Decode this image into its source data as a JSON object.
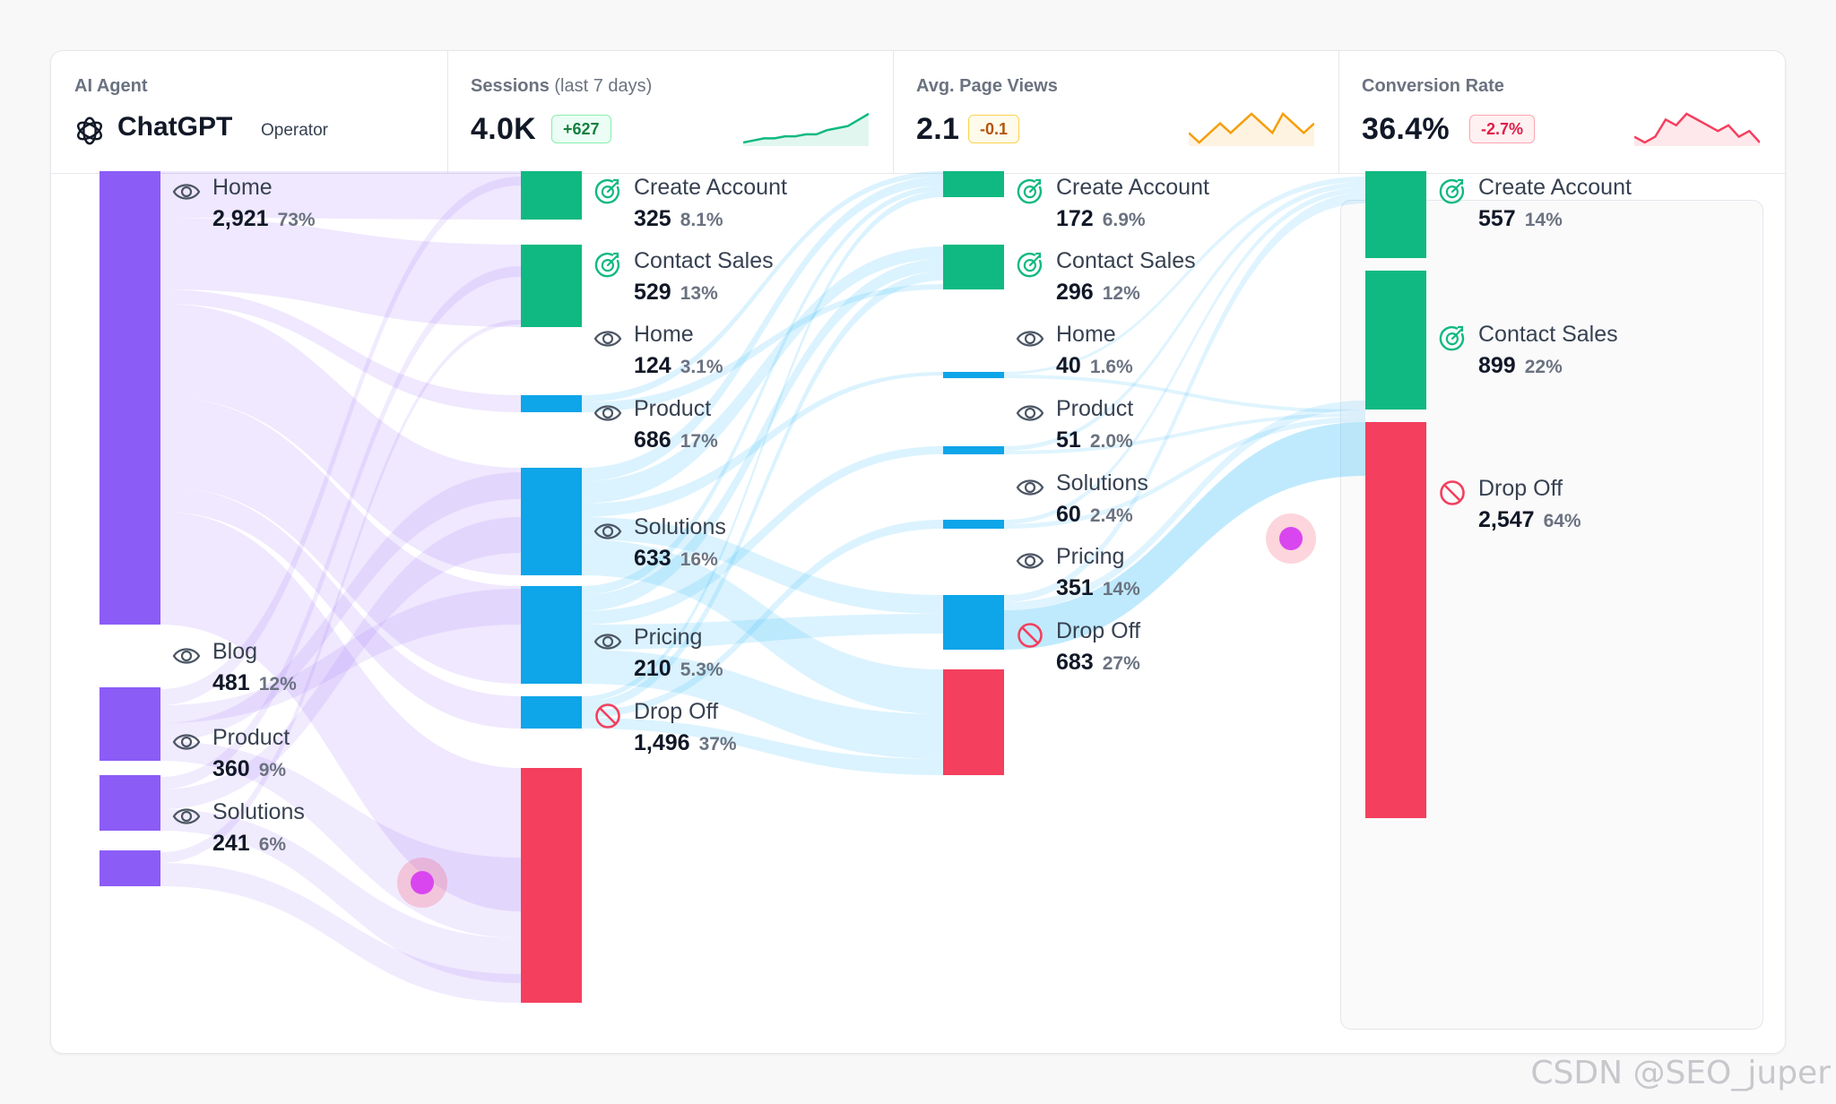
{
  "header": {
    "agent": {
      "label": "AI Agent",
      "name": "ChatGPT",
      "role": "Operator",
      "icon": "chatgpt-logo-icon"
    },
    "sessions": {
      "label": "Sessions",
      "sublabel": "(last 7 days)",
      "value": "4.0K",
      "delta": "+627",
      "trend": "up",
      "color": "#10b981",
      "spark": [
        2,
        3,
        4,
        4,
        5,
        5,
        6,
        6,
        8,
        9,
        10,
        13,
        16
      ]
    },
    "page_views": {
      "label": "Avg. Page Views",
      "value": "2.1",
      "delta": "-0.1",
      "trend": "flat",
      "color": "#f59e0b",
      "spark": [
        5,
        4,
        5,
        6,
        5,
        6,
        7,
        6,
        5,
        7,
        6,
        5,
        6
      ]
    },
    "conversion": {
      "label": "Conversion Rate",
      "value": "36.4%",
      "delta": "-2.7%",
      "trend": "down",
      "color": "#f43f5e",
      "spark": [
        5,
        4,
        5,
        8,
        7,
        9,
        8,
        7,
        6,
        7,
        5,
        6,
        4
      ]
    }
  },
  "colors": {
    "page": "#8b5cf6",
    "goal": "#10b981",
    "visit": "#0ea5e9",
    "drop": "#f43f5e",
    "link_stage1": "#8b5cf6",
    "link_stage2": "#38bdf8",
    "highlight": "#d946ef"
  },
  "sankey": {
    "columns": [
      {
        "stage": 1,
        "nodes": [
          {
            "id": "s1-home",
            "name": "Home",
            "count": "2,921",
            "pct": "73%",
            "type": "page",
            "icon": "eye-icon"
          },
          {
            "id": "s1-blog",
            "name": "Blog",
            "count": "481",
            "pct": "12%",
            "type": "page",
            "icon": "eye-icon"
          },
          {
            "id": "s1-product",
            "name": "Product",
            "count": "360",
            "pct": "9%",
            "type": "page",
            "icon": "eye-icon"
          },
          {
            "id": "s1-solutions",
            "name": "Solutions",
            "count": "241",
            "pct": "6%",
            "type": "page",
            "icon": "eye-icon"
          }
        ]
      },
      {
        "stage": 2,
        "nodes": [
          {
            "id": "s2-create",
            "name": "Create Account",
            "count": "325",
            "pct": "8.1%",
            "type": "goal",
            "icon": "target-check-icon"
          },
          {
            "id": "s2-contact",
            "name": "Contact Sales",
            "count": "529",
            "pct": "13%",
            "type": "goal",
            "icon": "target-check-icon"
          },
          {
            "id": "s2-home",
            "name": "Home",
            "count": "124",
            "pct": "3.1%",
            "type": "visit",
            "icon": "eye-icon"
          },
          {
            "id": "s2-product",
            "name": "Product",
            "count": "686",
            "pct": "17%",
            "type": "visit",
            "icon": "eye-icon"
          },
          {
            "id": "s2-solutions",
            "name": "Solutions",
            "count": "633",
            "pct": "16%",
            "type": "visit",
            "icon": "eye-icon"
          },
          {
            "id": "s2-pricing",
            "name": "Pricing",
            "count": "210",
            "pct": "5.3%",
            "type": "visit",
            "icon": "eye-icon"
          },
          {
            "id": "s2-drop",
            "name": "Drop Off",
            "count": "1,496",
            "pct": "37%",
            "type": "drop",
            "icon": "no-entry-icon"
          }
        ]
      },
      {
        "stage": 3,
        "nodes": [
          {
            "id": "s3-create",
            "name": "Create Account",
            "count": "172",
            "pct": "6.9%",
            "type": "goal",
            "icon": "target-check-icon"
          },
          {
            "id": "s3-contact",
            "name": "Contact Sales",
            "count": "296",
            "pct": "12%",
            "type": "goal",
            "icon": "target-check-icon"
          },
          {
            "id": "s3-home",
            "name": "Home",
            "count": "40",
            "pct": "1.6%",
            "type": "visit",
            "icon": "eye-icon"
          },
          {
            "id": "s3-product",
            "name": "Product",
            "count": "51",
            "pct": "2.0%",
            "type": "visit",
            "icon": "eye-icon"
          },
          {
            "id": "s3-solutions",
            "name": "Solutions",
            "count": "60",
            "pct": "2.4%",
            "type": "visit",
            "icon": "eye-icon"
          },
          {
            "id": "s3-pricing",
            "name": "Pricing",
            "count": "351",
            "pct": "14%",
            "type": "visit",
            "icon": "eye-icon"
          },
          {
            "id": "s3-drop",
            "name": "Drop Off",
            "count": "683",
            "pct": "27%",
            "type": "drop",
            "icon": "no-entry-icon"
          }
        ]
      },
      {
        "stage": 4,
        "nodes": [
          {
            "id": "s4-create",
            "name": "Create Account",
            "count": "557",
            "pct": "14%",
            "type": "goal",
            "icon": "target-check-icon"
          },
          {
            "id": "s4-contact",
            "name": "Contact Sales",
            "count": "899",
            "pct": "22%",
            "type": "goal",
            "icon": "target-check-icon"
          },
          {
            "id": "s4-drop",
            "name": "Drop Off",
            "count": "2,547",
            "pct": "64%",
            "type": "drop",
            "icon": "no-entry-icon"
          }
        ]
      }
    ]
  },
  "watermark": "CSDN @SEO_juper"
}
